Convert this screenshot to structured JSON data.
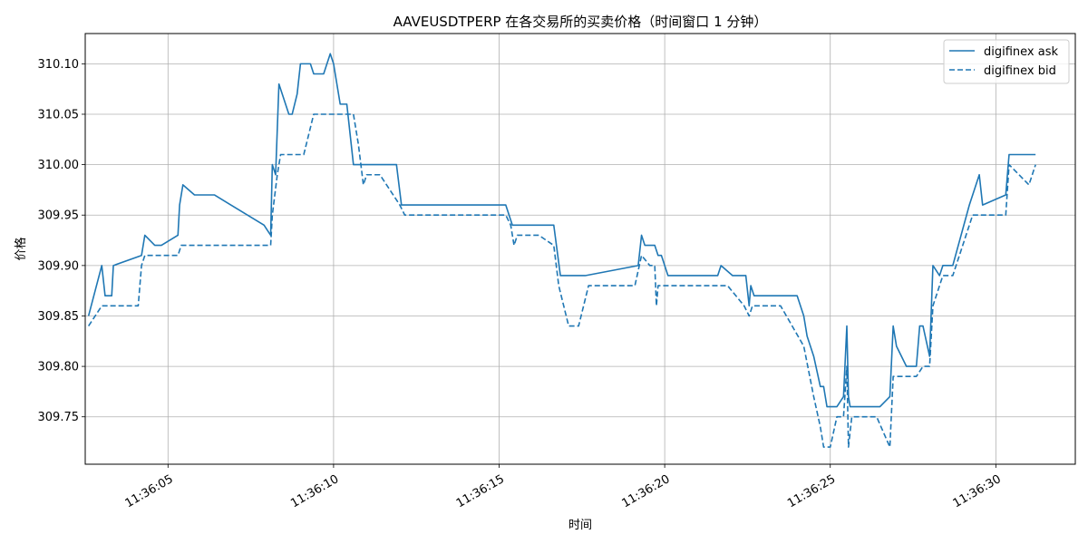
{
  "chart_data": {
    "type": "line",
    "title": "AAVEUSDTPERP 在各交易所的买卖价格（时间窗口 1 分钟）",
    "xlabel": "时间",
    "ylabel": "价格",
    "x_ticks": [
      "11:36:05",
      "11:36:10",
      "11:36:15",
      "11:36:20",
      "11:36:25",
      "11:36:30"
    ],
    "y_ticks": [
      "309.75",
      "309.80",
      "309.85",
      "309.90",
      "309.95",
      "310.00",
      "310.05",
      "310.10"
    ],
    "xlim": [
      2.5,
      32.4
    ],
    "ylim": [
      309.703,
      310.13
    ],
    "grid": true,
    "legend_position": "top-right",
    "series": [
      {
        "name": "digifinex ask",
        "style": "solid",
        "color": "#1f77b4",
        "points": [
          [
            2.6,
            309.85
          ],
          [
            3.0,
            309.9
          ],
          [
            3.1,
            309.87
          ],
          [
            3.3,
            309.87
          ],
          [
            3.35,
            309.9
          ],
          [
            4.2,
            309.91
          ],
          [
            4.3,
            309.93
          ],
          [
            4.6,
            309.92
          ],
          [
            4.8,
            309.92
          ],
          [
            5.3,
            309.93
          ],
          [
            5.35,
            309.96
          ],
          [
            5.45,
            309.98
          ],
          [
            5.8,
            309.97
          ],
          [
            6.4,
            309.97
          ],
          [
            7.9,
            309.94
          ],
          [
            8.1,
            309.93
          ],
          [
            8.15,
            310.0
          ],
          [
            8.25,
            309.99
          ],
          [
            8.35,
            310.08
          ],
          [
            8.65,
            310.05
          ],
          [
            8.75,
            310.05
          ],
          [
            8.9,
            310.07
          ],
          [
            9.0,
            310.1
          ],
          [
            9.3,
            310.1
          ],
          [
            9.4,
            310.09
          ],
          [
            9.7,
            310.09
          ],
          [
            9.9,
            310.11
          ],
          [
            10.0,
            310.1
          ],
          [
            10.2,
            310.06
          ],
          [
            10.4,
            310.06
          ],
          [
            10.5,
            310.03
          ],
          [
            10.6,
            310.0
          ],
          [
            11.9,
            310.0
          ],
          [
            12.05,
            309.96
          ],
          [
            15.2,
            309.96
          ],
          [
            15.4,
            309.94
          ],
          [
            16.65,
            309.94
          ],
          [
            16.85,
            309.89
          ],
          [
            17.6,
            309.89
          ],
          [
            19.2,
            309.9
          ],
          [
            19.3,
            309.93
          ],
          [
            19.4,
            309.92
          ],
          [
            19.7,
            309.92
          ],
          [
            19.8,
            309.91
          ],
          [
            19.9,
            309.91
          ],
          [
            20.1,
            309.89
          ],
          [
            21.6,
            309.89
          ],
          [
            21.7,
            309.9
          ],
          [
            22.05,
            309.89
          ],
          [
            22.45,
            309.89
          ],
          [
            22.55,
            309.86
          ],
          [
            22.6,
            309.88
          ],
          [
            22.7,
            309.87
          ],
          [
            24.0,
            309.87
          ],
          [
            24.2,
            309.85
          ],
          [
            24.3,
            309.83
          ],
          [
            24.5,
            309.81
          ],
          [
            24.7,
            309.78
          ],
          [
            24.8,
            309.78
          ],
          [
            24.9,
            309.76
          ],
          [
            25.2,
            309.76
          ],
          [
            25.4,
            309.77
          ],
          [
            25.5,
            309.84
          ],
          [
            25.55,
            309.77
          ],
          [
            25.6,
            309.76
          ],
          [
            26.5,
            309.76
          ],
          [
            26.8,
            309.77
          ],
          [
            26.9,
            309.84
          ],
          [
            27.0,
            309.82
          ],
          [
            27.3,
            309.8
          ],
          [
            27.6,
            309.8
          ],
          [
            27.7,
            309.84
          ],
          [
            27.8,
            309.84
          ],
          [
            28.0,
            309.81
          ],
          [
            28.1,
            309.9
          ],
          [
            28.3,
            309.89
          ],
          [
            28.4,
            309.9
          ],
          [
            28.7,
            309.9
          ],
          [
            29.2,
            309.96
          ],
          [
            29.5,
            309.99
          ],
          [
            29.6,
            309.96
          ],
          [
            30.3,
            309.97
          ],
          [
            30.4,
            310.01
          ],
          [
            31.2,
            310.01
          ]
        ]
      },
      {
        "name": "digifinex bid",
        "style": "dashed",
        "color": "#1f77b4",
        "points": [
          [
            2.6,
            309.84
          ],
          [
            3.0,
            309.86
          ],
          [
            4.1,
            309.86
          ],
          [
            4.2,
            309.9
          ],
          [
            4.3,
            309.91
          ],
          [
            5.3,
            309.91
          ],
          [
            5.4,
            309.92
          ],
          [
            8.1,
            309.92
          ],
          [
            8.15,
            309.95
          ],
          [
            8.3,
            309.99
          ],
          [
            8.4,
            310.01
          ],
          [
            9.1,
            310.01
          ],
          [
            9.4,
            310.05
          ],
          [
            10.6,
            310.05
          ],
          [
            10.75,
            310.02
          ],
          [
            10.9,
            309.98
          ],
          [
            11.0,
            309.99
          ],
          [
            11.4,
            309.99
          ],
          [
            12.0,
            309.96
          ],
          [
            12.15,
            309.95
          ],
          [
            15.2,
            309.95
          ],
          [
            15.35,
            309.94
          ],
          [
            15.45,
            309.92
          ],
          [
            15.55,
            309.93
          ],
          [
            16.2,
            309.93
          ],
          [
            16.65,
            309.92
          ],
          [
            16.8,
            309.88
          ],
          [
            16.95,
            309.86
          ],
          [
            17.1,
            309.84
          ],
          [
            17.4,
            309.84
          ],
          [
            17.7,
            309.88
          ],
          [
            19.1,
            309.88
          ],
          [
            19.3,
            309.91
          ],
          [
            19.55,
            309.9
          ],
          [
            19.7,
            309.9
          ],
          [
            19.75,
            309.86
          ],
          [
            19.8,
            309.88
          ],
          [
            21.9,
            309.88
          ],
          [
            22.4,
            309.86
          ],
          [
            22.55,
            309.85
          ],
          [
            22.65,
            309.86
          ],
          [
            23.5,
            309.86
          ],
          [
            24.2,
            309.82
          ],
          [
            24.5,
            309.77
          ],
          [
            24.7,
            309.74
          ],
          [
            24.8,
            309.72
          ],
          [
            25.0,
            309.72
          ],
          [
            25.2,
            309.75
          ],
          [
            25.4,
            309.75
          ],
          [
            25.5,
            309.8
          ],
          [
            25.55,
            309.72
          ],
          [
            25.65,
            309.75
          ],
          [
            26.4,
            309.75
          ],
          [
            26.8,
            309.72
          ],
          [
            26.9,
            309.79
          ],
          [
            27.6,
            309.79
          ],
          [
            27.8,
            309.8
          ],
          [
            28.0,
            309.8
          ],
          [
            28.1,
            309.86
          ],
          [
            28.4,
            309.89
          ],
          [
            28.7,
            309.89
          ],
          [
            29.3,
            309.95
          ],
          [
            30.3,
            309.95
          ],
          [
            30.4,
            310.0
          ],
          [
            31.0,
            309.98
          ],
          [
            31.2,
            310.0
          ]
        ]
      }
    ]
  }
}
